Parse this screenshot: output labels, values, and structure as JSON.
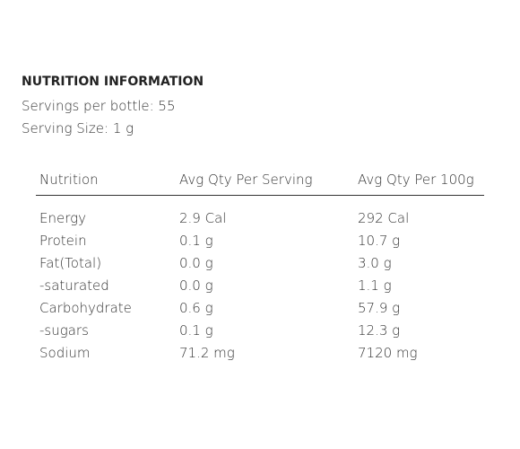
{
  "header": {
    "title": "NUTRITION INFORMATION",
    "servings": "Servings per bottle: 55",
    "serving_size": "Serving Size: 1 g"
  },
  "table": {
    "columns": [
      "Nutrition",
      "Avg Qty Per Serving",
      "Avg Qty Per 100g"
    ],
    "rows": [
      [
        "Energy",
        "2.9 Cal",
        "292 Cal"
      ],
      [
        "Protein",
        "0.1 g",
        "10.7 g"
      ],
      [
        "Fat(Total)",
        "0.0 g",
        "3.0 g"
      ],
      [
        "-saturated",
        "0.0 g",
        "1.1 g"
      ],
      [
        "Carbohydrate",
        "0.6 g",
        "57.9 g"
      ],
      [
        "-sugars",
        "0.1 g",
        "12.3 g"
      ],
      [
        "Sodium",
        "71.2 mg",
        "7120 mg"
      ]
    ]
  }
}
